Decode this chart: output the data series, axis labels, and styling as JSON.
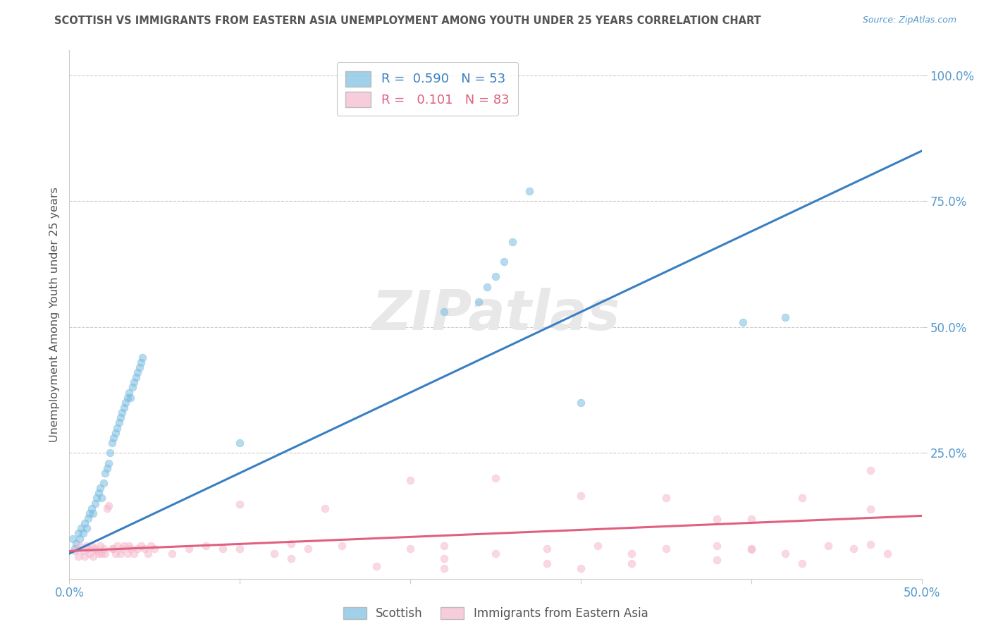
{
  "title": "SCOTTISH VS IMMIGRANTS FROM EASTERN ASIA UNEMPLOYMENT AMONG YOUTH UNDER 25 YEARS CORRELATION CHART",
  "source": "Source: ZipAtlas.com",
  "ylabel": "Unemployment Among Youth under 25 years",
  "xlim": [
    0.0,
    0.5
  ],
  "ylim": [
    0.0,
    1.05
  ],
  "x_ticks": [
    0.0,
    0.1,
    0.2,
    0.3,
    0.4,
    0.5
  ],
  "x_tick_labels": [
    "0.0%",
    "",
    "",
    "",
    "",
    "50.0%"
  ],
  "y_tick_labels_right": [
    "100.0%",
    "75.0%",
    "50.0%",
    "25.0%"
  ],
  "y_tick_vals_right": [
    1.0,
    0.75,
    0.5,
    0.25
  ],
  "blue_color": "#7abde0",
  "pink_color": "#f5b8ce",
  "line_blue": "#3a7fc1",
  "line_pink": "#e06080",
  "watermark": "ZIPatlas",
  "blue_scatter_x": [
    0.002,
    0.003,
    0.004,
    0.005,
    0.006,
    0.007,
    0.008,
    0.009,
    0.01,
    0.011,
    0.012,
    0.013,
    0.014,
    0.015,
    0.016,
    0.017,
    0.018,
    0.019,
    0.02,
    0.021,
    0.022,
    0.023,
    0.024,
    0.025,
    0.026,
    0.027,
    0.028,
    0.029,
    0.03,
    0.031,
    0.032,
    0.033,
    0.034,
    0.035,
    0.036,
    0.037,
    0.038,
    0.039,
    0.04,
    0.041,
    0.042,
    0.043,
    0.22,
    0.24,
    0.245,
    0.25,
    0.255,
    0.26,
    0.27,
    0.3,
    0.395,
    0.42,
    0.1
  ],
  "blue_scatter_y": [
    0.08,
    0.06,
    0.07,
    0.09,
    0.08,
    0.1,
    0.09,
    0.11,
    0.1,
    0.12,
    0.13,
    0.14,
    0.13,
    0.15,
    0.16,
    0.17,
    0.18,
    0.16,
    0.19,
    0.21,
    0.22,
    0.23,
    0.25,
    0.27,
    0.28,
    0.29,
    0.3,
    0.31,
    0.32,
    0.33,
    0.34,
    0.35,
    0.36,
    0.37,
    0.36,
    0.38,
    0.39,
    0.4,
    0.41,
    0.42,
    0.43,
    0.44,
    0.53,
    0.55,
    0.58,
    0.6,
    0.63,
    0.67,
    0.77,
    0.35,
    0.51,
    0.52,
    0.27
  ],
  "pink_scatter_x": [
    0.003,
    0.005,
    0.006,
    0.008,
    0.009,
    0.01,
    0.011,
    0.012,
    0.013,
    0.014,
    0.015,
    0.016,
    0.017,
    0.018,
    0.019,
    0.02,
    0.021,
    0.022,
    0.023,
    0.025,
    0.026,
    0.027,
    0.028,
    0.03,
    0.031,
    0.032,
    0.034,
    0.035,
    0.036,
    0.038,
    0.04,
    0.042,
    0.044,
    0.046,
    0.048,
    0.05,
    0.06,
    0.07,
    0.08,
    0.09,
    0.1,
    0.12,
    0.14,
    0.16,
    0.2,
    0.22,
    0.25,
    0.28,
    0.31,
    0.33,
    0.35,
    0.38,
    0.4,
    0.42,
    0.445,
    0.46,
    0.48,
    0.1,
    0.15,
    0.2,
    0.25,
    0.3,
    0.35,
    0.4,
    0.43,
    0.47,
    0.18,
    0.22,
    0.28,
    0.33,
    0.38,
    0.43,
    0.47,
    0.13,
    0.38,
    0.47,
    0.13,
    0.22,
    0.3,
    0.4
  ],
  "pink_scatter_y": [
    0.055,
    0.045,
    0.065,
    0.055,
    0.045,
    0.065,
    0.06,
    0.05,
    0.065,
    0.045,
    0.06,
    0.055,
    0.05,
    0.065,
    0.05,
    0.06,
    0.05,
    0.14,
    0.145,
    0.06,
    0.06,
    0.05,
    0.065,
    0.05,
    0.06,
    0.065,
    0.05,
    0.065,
    0.06,
    0.05,
    0.06,
    0.065,
    0.06,
    0.05,
    0.065,
    0.06,
    0.05,
    0.06,
    0.065,
    0.06,
    0.06,
    0.05,
    0.06,
    0.065,
    0.06,
    0.065,
    0.05,
    0.06,
    0.065,
    0.05,
    0.06,
    0.065,
    0.06,
    0.05,
    0.065,
    0.06,
    0.05,
    0.148,
    0.14,
    0.195,
    0.2,
    0.165,
    0.16,
    0.118,
    0.16,
    0.215,
    0.025,
    0.04,
    0.03,
    0.03,
    0.038,
    0.03,
    0.068,
    0.07,
    0.118,
    0.138,
    0.04,
    0.02,
    0.02,
    0.058
  ],
  "blue_line_x": [
    0.0,
    0.5
  ],
  "blue_line_y": [
    0.05,
    0.85
  ],
  "pink_line_x": [
    0.0,
    0.5
  ],
  "pink_line_y": [
    0.055,
    0.125
  ],
  "bg_color": "#ffffff",
  "grid_color": "#cccccc",
  "title_color": "#555555",
  "right_tick_color": "#5599cc"
}
